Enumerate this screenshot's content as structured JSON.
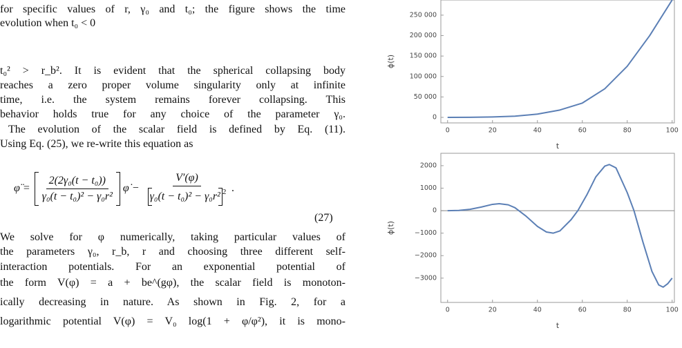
{
  "text": {
    "caption_lines": [
      "for specific values of r, γ₀ and t₀; the figure shows the time",
      "evolution when t₀ < 0"
    ],
    "paragraph_lines": [
      "t₀² > r_b². It is evident that the spherical collapsing body",
      "reaches a zero proper volume singularity only at infinite",
      "time, i.e. the system remains forever collapsing. This",
      "behavior holds true for any choice of the parameter γ₀.",
      "The evolution of the scalar field is defined by Eq. (11).",
      "Using Eq. (25), we re-write this equation as"
    ],
    "equation": {
      "lhs": "φ̈ =",
      "frac1_num": "2(2γ₀(t − t₀))",
      "frac1_den": "γ₀(t − t₀)² − γ₀r²",
      "middle": "φ̇ −",
      "frac2_num": "V′(φ)",
      "frac2_den": "γ₀(t − t₀)² − γ₀r²",
      "frac2_den_power": "2",
      "end": ".",
      "number": "(27)"
    },
    "paragraph2_lines": [
      "We solve for φ numerically, taking particular values of",
      "the parameters γ₀, r_b, r and choosing three different self-",
      "interaction potentials. For an exponential potential of",
      "the form V(φ) = a + be^(gφ), the scalar field is monoton-",
      "ically decreasing in nature. As shown in Fig. 2, for a",
      "logarithmic potential V(φ) = V₀ log(1 + φ/φ²), it is mono-"
    ]
  },
  "chart_data": [
    {
      "type": "line",
      "x_label": "t",
      "y_label": "ϕ(t)",
      "color": "#5b7fb5",
      "x": [
        0,
        10,
        20,
        30,
        40,
        50,
        60,
        70,
        80,
        90,
        100
      ],
      "values": [
        0,
        200,
        1000,
        3000,
        8000,
        18000,
        35000,
        70000,
        125000,
        200000,
        287000
      ],
      "xlim": [
        -3,
        101
      ],
      "xticks": [
        0,
        20,
        40,
        60,
        80,
        100
      ],
      "ylim": [
        -13500,
        287000
      ],
      "yticks": [
        0,
        {
          "value": 50000,
          "label": "50 000"
        },
        {
          "value": 100000,
          "label": "100 000"
        },
        {
          "value": 150000,
          "label": "150 000"
        },
        {
          "value": 200000,
          "label": "200 000"
        },
        {
          "value": 250000,
          "label": "250 000"
        }
      ],
      "zero_line": false
    },
    {
      "type": "line",
      "x_label": "t",
      "y_label": "ϕ(t)",
      "color": "#5b7fb5",
      "x": [
        0,
        5,
        10,
        15,
        20,
        23,
        27,
        30,
        35,
        40,
        44,
        47,
        50,
        55,
        58,
        62,
        66,
        70,
        72,
        75,
        80,
        83,
        87,
        91,
        94,
        96,
        98,
        100
      ],
      "values": [
        0,
        10,
        60,
        160,
        280,
        310,
        260,
        130,
        -250,
        -700,
        -950,
        -1000,
        -900,
        -400,
        0,
        700,
        1500,
        1980,
        2050,
        1900,
        800,
        0,
        -1400,
        -2700,
        -3300,
        -3400,
        -3250,
        -3000
      ],
      "xlim": [
        -3,
        101
      ],
      "xticks": [
        0,
        20,
        40,
        60,
        80,
        100
      ],
      "ylim": [
        -4080,
        2550
      ],
      "yticks": [
        {
          "value": -3000,
          "label": "−3000"
        },
        {
          "value": -2000,
          "label": "−2000"
        },
        {
          "value": -1000,
          "label": "−1000"
        },
        0,
        1000,
        2000
      ],
      "zero_line": true
    }
  ]
}
